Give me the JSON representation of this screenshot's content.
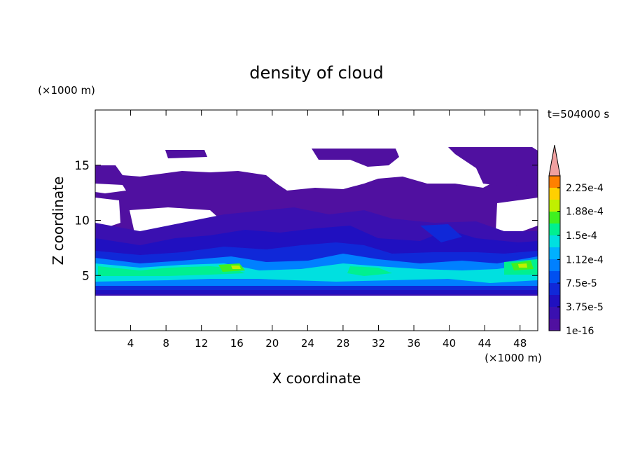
{
  "chart_data": {
    "type": "contour",
    "title": "density of cloud",
    "x_label": "X coordinate",
    "y_label": "Z coordinate",
    "x_unit": "(×1000 m)",
    "y_unit": "(×1000 m)",
    "time_label": "t=504000 s",
    "xlim": [
      0,
      50
    ],
    "xticks": [
      4,
      8,
      12,
      16,
      20,
      24,
      28,
      32,
      36,
      40,
      44,
      48
    ],
    "ylim": [
      0,
      20
    ],
    "yticks": [
      5,
      10,
      15
    ],
    "colorbar": {
      "clim": [
        1e-16,
        0.00024375
      ],
      "ticks": [
        {
          "value": 1e-16,
          "label": "1e-16"
        },
        {
          "value": 3.75e-05,
          "label": "3.75e-5"
        },
        {
          "value": 7.5e-05,
          "label": "7.5e-5"
        },
        {
          "value": 0.000112,
          "label": "1.12e-4"
        },
        {
          "value": 0.00015,
          "label": "1.5e-4"
        },
        {
          "value": 0.000188,
          "label": "1.88e-4"
        },
        {
          "value": 0.000225,
          "label": "2.25e-4"
        }
      ],
      "colors": [
        "#5010a0",
        "#3a10b0",
        "#2010c0",
        "#1028d8",
        "#0050f0",
        "#0080ff",
        "#00b0ff",
        "#00e0e0",
        "#00f090",
        "#40f020",
        "#c0f000",
        "#ffd000",
        "#ff8000"
      ],
      "extend_color": "#f0a0a0"
    }
  }
}
